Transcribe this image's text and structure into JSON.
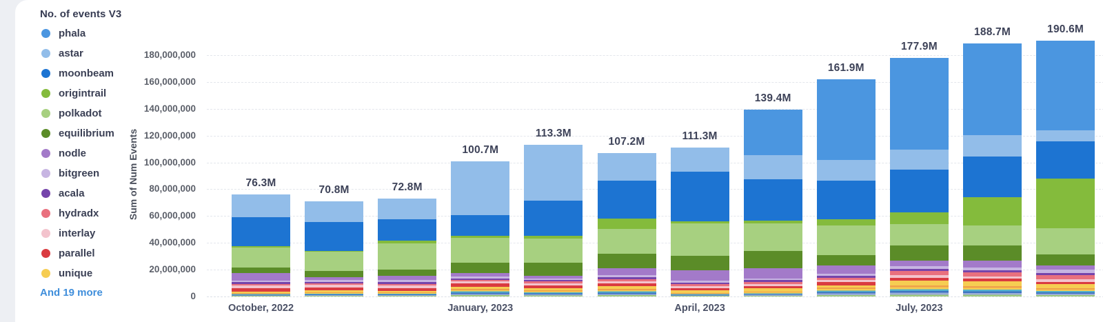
{
  "page": {
    "background_color": "#edeff3",
    "card_color": "#ffffff"
  },
  "legend": {
    "title": "No. of events V3",
    "more_label": "And 19 more",
    "more_color": "#3f8edb"
  },
  "chart_data": {
    "type": "bar",
    "subtype": "stacked-vertical",
    "title": "No. of events V3",
    "ylabel": "Sum of Num Events",
    "values_unit": "millions of events",
    "ylim_millions": [
      0,
      180
    ],
    "grid": "horizontal-dashed",
    "ytick_labels_bottom_to_top": [
      "0",
      "20,000,000",
      "40,000,000",
      "60,000,000",
      "80,000,000",
      "100,000,000",
      "120,000,000",
      "140,000,000",
      "160,000,000",
      "180,000,000"
    ],
    "visible_xticks": [
      {
        "label": "October, 2022",
        "bar_index": 0
      },
      {
        "label": "January, 2023",
        "bar_index": 3
      },
      {
        "label": "April, 2023",
        "bar_index": 6
      },
      {
        "label": "July, 2023",
        "bar_index": 9
      }
    ],
    "bar_total_labels": [
      "76.3M",
      "70.8M",
      "72.8M",
      "100.7M",
      "113.3M",
      "107.2M",
      "111.3M",
      "139.4M",
      "161.9M",
      "177.9M",
      "188.7M",
      "190.6M"
    ],
    "others_stripe_colors": [
      "#efa14b",
      "#f6cd52",
      "#53b1cb",
      "#3e74c2",
      "#9badd8",
      "#9ec97e"
    ],
    "series": [
      {
        "name": "phala",
        "color": "#4b96e0",
        "in_legend": true,
        "values_millions": [
          0,
          0,
          0,
          0,
          0,
          0,
          0,
          34,
          60.2,
          68.4,
          68.5,
          66.5
        ]
      },
      {
        "name": "astar",
        "color": "#92bde9",
        "in_legend": true,
        "values_millions": [
          17.4,
          15.3,
          15,
          40,
          42,
          21,
          18,
          17.9,
          15.4,
          14.8,
          15.8,
          8.2
        ]
      },
      {
        "name": "moonbeam",
        "color": "#1d74d2",
        "in_legend": true,
        "values_millions": [
          21.5,
          21.5,
          16,
          15.3,
          26,
          28,
          37.3,
          30.7,
          28.8,
          32.2,
          30.2,
          28.1
        ]
      },
      {
        "name": "origintrail",
        "color": "#84bb3c",
        "in_legend": true,
        "values_millions": [
          1,
          0.8,
          2,
          1.5,
          2,
          7.7,
          1.5,
          2.5,
          4.6,
          8.7,
          21,
          36.8
        ]
      },
      {
        "name": "polkadot",
        "color": "#a7d080",
        "in_legend": true,
        "values_millions": [
          15,
          14.3,
          19.5,
          18.9,
          18,
          18.4,
          24,
          20.4,
          22.1,
          15.8,
          15.3,
          19.4
        ]
      },
      {
        "name": "equilibrium",
        "color": "#5b8c28",
        "in_legend": true,
        "values_millions": [
          4,
          4.6,
          5,
          7.7,
          9.7,
          11.2,
          11.2,
          12.8,
          7.7,
          11.2,
          11.2,
          8.7
        ]
      },
      {
        "name": "nodle",
        "color": "#a37ac9",
        "in_legend": true,
        "values_millions": [
          5.6,
          2.2,
          3,
          2.5,
          2,
          5,
          7.7,
          7.7,
          6.2,
          4.1,
          5.1,
          3
        ]
      },
      {
        "name": "bitgreen",
        "color": "#c7b5e2",
        "in_legend": true,
        "values_millions": [
          1.2,
          1.2,
          1.5,
          1.5,
          1.2,
          1.5,
          1.2,
          1.3,
          1.6,
          2,
          2,
          2.5
        ]
      },
      {
        "name": "acala",
        "color": "#7544ab",
        "in_legend": true,
        "values_millions": [
          1.4,
          1.3,
          1.5,
          1,
          1.2,
          1.5,
          1.2,
          1.3,
          1.2,
          1.5,
          1.5,
          1.5
        ]
      },
      {
        "name": "hydradx",
        "color": "#e9707e",
        "in_legend": true,
        "values_millions": [
          1,
          1,
          1,
          1,
          1.2,
          1.5,
          1.5,
          1.8,
          1.6,
          3.5,
          3,
          3
        ]
      },
      {
        "name": "interlay",
        "color": "#f3c3cd",
        "in_legend": true,
        "values_millions": [
          2,
          1.8,
          2,
          1.5,
          1.8,
          1.5,
          1.5,
          1.5,
          1.6,
          2,
          2,
          2
        ]
      },
      {
        "name": "parallel",
        "color": "#da3b40",
        "in_legend": true,
        "values_millions": [
          2.6,
          2.3,
          2,
          2.5,
          2.2,
          2,
          1.5,
          1.5,
          2.6,
          1.7,
          1.6,
          1.5
        ]
      },
      {
        "name": "unique",
        "color": "#f6cd52",
        "in_legend": true,
        "values_millions": [
          1,
          1.3,
          1.5,
          1.5,
          1.5,
          2.5,
          2,
          2.5,
          1.8,
          4,
          4,
          3.5
        ]
      },
      {
        "name": "others",
        "color": "striped",
        "in_legend": false,
        "values_millions": [
          2.6,
          3.2,
          2.8,
          5.8,
          4.5,
          5.4,
          2.7,
          3.5,
          6.5,
          8,
          7.5,
          5.9
        ]
      }
    ]
  }
}
